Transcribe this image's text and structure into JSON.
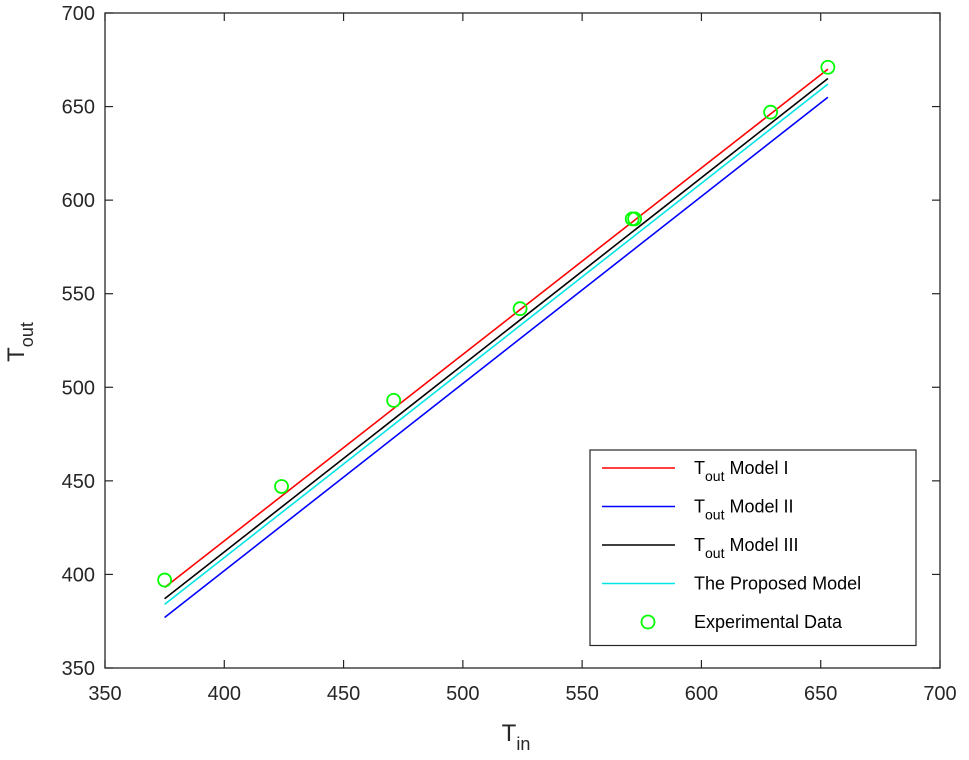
{
  "chart_data": {
    "type": "line",
    "xlabel": {
      "main": "T",
      "sub": "in"
    },
    "ylabel": {
      "main": "T",
      "sub": "out"
    },
    "xlim": [
      350,
      700
    ],
    "ylim": [
      350,
      700
    ],
    "x_ticks": [
      350,
      400,
      450,
      500,
      550,
      600,
      650,
      700
    ],
    "y_ticks": [
      350,
      400,
      450,
      500,
      550,
      600,
      650,
      700
    ],
    "x_tick_labels": [
      "350",
      "400",
      "450",
      "500",
      "550",
      "600",
      "650",
      "700"
    ],
    "y_tick_labels": [
      "350",
      "400",
      "450",
      "500",
      "550",
      "600",
      "650",
      "700"
    ],
    "grid": false,
    "legend_position": "bottom-right",
    "series": [
      {
        "name": "Model I",
        "legend_main": "T",
        "legend_sub": "out",
        "legend_suffix": " Model I",
        "color": "#ff0000",
        "style": "line",
        "x": [
          375,
          653
        ],
        "y": [
          393,
          670
        ]
      },
      {
        "name": "Model II",
        "legend_main": "T",
        "legend_sub": "out",
        "legend_suffix": " Model II",
        "color": "#0000ff",
        "style": "line",
        "x": [
          375,
          653
        ],
        "y": [
          377,
          655
        ]
      },
      {
        "name": "Model III",
        "legend_main": "T",
        "legend_sub": "out",
        "legend_suffix": " Model III",
        "color": "#000000",
        "style": "line",
        "x": [
          375,
          653
        ],
        "y": [
          387,
          665
        ]
      },
      {
        "name": "The Proposed Model",
        "legend_main": "The Proposed Model",
        "legend_sub": "",
        "legend_suffix": "",
        "color": "#00e5e5",
        "style": "line",
        "x": [
          375,
          653
        ],
        "y": [
          384,
          662
        ]
      },
      {
        "name": "Experimental Data",
        "legend_main": "Experimental Data",
        "legend_sub": "",
        "legend_suffix": "",
        "color": "#00ff00",
        "style": "marker",
        "x": [
          375,
          424,
          471,
          524,
          571,
          572,
          629,
          653
        ],
        "y": [
          397,
          447,
          493,
          542,
          590,
          590,
          647,
          671
        ]
      }
    ]
  }
}
